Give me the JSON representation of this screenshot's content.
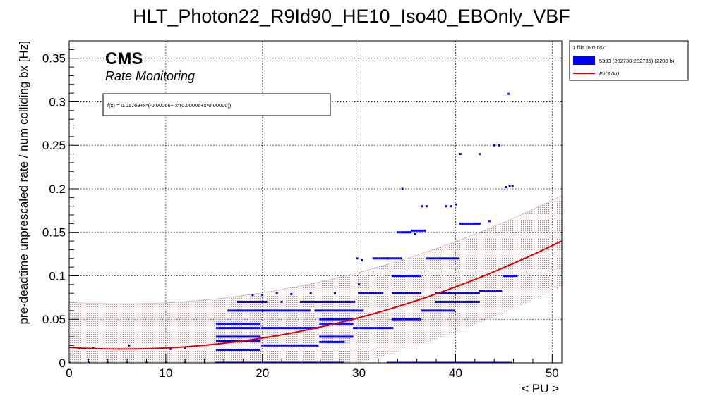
{
  "chart_data": {
    "type": "scatter",
    "title": "HLT_Photon22_R9Id90_HE10_Iso40_EBOnly_VBF",
    "xlabel": "< PU >",
    "ylabel": "pre-deadtime unprescaled rate / num colliding bx [Hz]",
    "xlim": [
      0,
      51
    ],
    "ylim": [
      0,
      0.37
    ],
    "xticks": [
      0,
      10,
      20,
      30,
      40,
      50
    ],
    "yticks": [
      0,
      0.05,
      0.1,
      0.15,
      0.2,
      0.25,
      0.3,
      0.35
    ],
    "grid": true,
    "cms_label": "CMS",
    "cms_sublabel": "Rate Monitoring",
    "fit_formula": "f(x) = 0.01769+x*(-0.00066+ x*(0.00006+x*0.00000))",
    "fit": {
      "coefficients": [
        0.01769,
        -0.00066,
        6e-05
      ],
      "sigma": 3.0,
      "band_halfwidth": 0.052
    },
    "legend": {
      "header": "1 fills (6 runs):",
      "entries": [
        {
          "label": "5393 (282730-282735) (2208 b)",
          "kind": "box"
        },
        {
          "label": "Fit(3.0σ)",
          "kind": "line"
        }
      ]
    },
    "colors": {
      "points": "#0000ee",
      "fit": "#dd0000",
      "band": "#c49494"
    },
    "series": [
      {
        "name": "5393 (282730-282735) (2208 b)",
        "segments": [
          {
            "x": [
              15.2,
              28.5
            ],
            "y": 0.0
          },
          {
            "x": [
              33.0,
              45.8
            ],
            "y": 0.0
          },
          {
            "x": [
              15.3,
              19.8
            ],
            "y": 0.015
          },
          {
            "x": [
              20.0,
              25.9
            ],
            "y": 0.02
          },
          {
            "x": [
              26.0,
              28.5
            ],
            "y": 0.024
          },
          {
            "x": [
              15.3,
              19.8
            ],
            "y": 0.025
          },
          {
            "x": [
              15.3,
              19.8
            ],
            "y": 0.03
          },
          {
            "x": [
              26.0,
              29.5
            ],
            "y": 0.03
          },
          {
            "x": [
              15.3,
              19.8
            ],
            "y": 0.04
          },
          {
            "x": [
              20.0,
              25.9
            ],
            "y": 0.04
          },
          {
            "x": [
              29.5,
              33.5
            ],
            "y": 0.04
          },
          {
            "x": [
              15.3,
              19.8
            ],
            "y": 0.045
          },
          {
            "x": [
              26.0,
              29.5
            ],
            "y": 0.045
          },
          {
            "x": [
              26.0,
              29.5
            ],
            "y": 0.05
          },
          {
            "x": [
              33.5,
              36.5
            ],
            "y": 0.05
          },
          {
            "x": [
              16.5,
              25.0
            ],
            "y": 0.06
          },
          {
            "x": [
              25.5,
              29.5
            ],
            "y": 0.06
          },
          {
            "x": [
              29.5,
              30.5
            ],
            "y": 0.06
          },
          {
            "x": [
              36.5,
              40.0
            ],
            "y": 0.06
          },
          {
            "x": [
              17.5,
              20.5
            ],
            "y": 0.07
          },
          {
            "x": [
              24.0,
              29.5
            ],
            "y": 0.07
          },
          {
            "x": [
              38.0,
              42.5
            ],
            "y": 0.07
          },
          {
            "x": [
              30.0,
              32.5
            ],
            "y": 0.08
          },
          {
            "x": [
              33.5,
              36.5
            ],
            "y": 0.08
          },
          {
            "x": [
              38.0,
              42.5
            ],
            "y": 0.08
          },
          {
            "x": [
              42.5,
              44.8
            ],
            "y": 0.083
          },
          {
            "x": [
              33.5,
              36.5
            ],
            "y": 0.1
          },
          {
            "x": [
              45.0,
              46.5
            ],
            "y": 0.1
          },
          {
            "x": [
              37.0,
              40.5
            ],
            "y": 0.12
          },
          {
            "x": [
              31.5,
              34.5
            ],
            "y": 0.12
          },
          {
            "x": [
              34.0,
              35.5
            ],
            "y": 0.15
          },
          {
            "x": [
              35.5,
              37.0
            ],
            "y": 0.152
          },
          {
            "x": [
              40.5,
              42.5
            ],
            "y": 0.16
          }
        ],
        "points": [
          [
            0.0,
            0.0
          ],
          [
            2.0,
            0.0
          ],
          [
            4.0,
            0.0
          ],
          [
            6.0,
            0.0
          ],
          [
            8.0,
            0.0
          ],
          [
            10.0,
            0.0
          ],
          [
            12.0,
            0.0
          ],
          [
            2.5,
            0.017
          ],
          [
            6.2,
            0.02
          ],
          [
            10.5,
            0.016
          ],
          [
            12.0,
            0.017
          ],
          [
            17.5,
            0.06
          ],
          [
            19.0,
            0.078
          ],
          [
            20.0,
            0.078
          ],
          [
            21.5,
            0.08
          ],
          [
            23.0,
            0.079
          ],
          [
            25.0,
            0.08
          ],
          [
            27.5,
            0.08
          ],
          [
            22.0,
            0.07
          ],
          [
            30.0,
            0.09
          ],
          [
            29.8,
            0.12
          ],
          [
            30.3,
            0.118
          ],
          [
            33.0,
            0.12
          ],
          [
            34.5,
            0.2
          ],
          [
            36.5,
            0.18
          ],
          [
            37.0,
            0.18
          ],
          [
            39.0,
            0.18
          ],
          [
            39.5,
            0.18
          ],
          [
            40.0,
            0.182
          ],
          [
            40.5,
            0.24
          ],
          [
            42.5,
            0.24
          ],
          [
            43.5,
            0.163
          ],
          [
            44.0,
            0.25
          ],
          [
            44.5,
            0.25
          ],
          [
            45.5,
            0.309
          ],
          [
            45.2,
            0.202
          ],
          [
            45.6,
            0.203
          ],
          [
            45.9,
            0.203
          ],
          [
            35.8,
            0.148
          ]
        ]
      }
    ]
  }
}
